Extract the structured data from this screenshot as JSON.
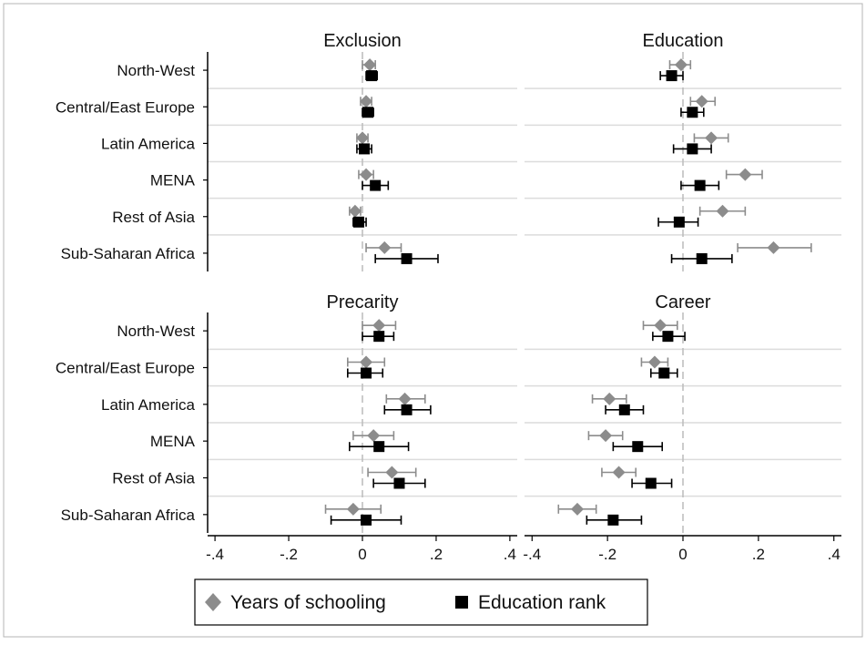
{
  "chart_data": {
    "type": "scatter",
    "subtype": "coefficient-plot-with-confidence-intervals",
    "layout": "2x2 panels",
    "rows": [
      "North-West",
      "Central/East Europe",
      "Latin America",
      "MENA",
      "Rest of Asia",
      "Sub-Saharan Africa"
    ],
    "xticks": [
      -0.4,
      -0.2,
      0,
      0.2,
      0.4
    ],
    "xtick_labels": [
      "-.4",
      "-.2",
      "0",
      ".2",
      ".4"
    ],
    "xlim": [
      -0.42,
      0.42
    ],
    "reference_line": 0,
    "grid": "horizontal row separators",
    "legend": {
      "placement": "bottom",
      "entries": [
        {
          "label": "Years of schooling",
          "marker": "diamond",
          "color": "#8c8c8c"
        },
        {
          "label": "Education rank",
          "marker": "square",
          "color": "#000000"
        }
      ]
    },
    "colors": {
      "years_of_schooling": "#8c8c8c",
      "education_rank": "#000000",
      "reference_line": "#bbbbbb",
      "separator": "#dcdcdc"
    },
    "panels": [
      {
        "title": "Exclusion",
        "series": [
          {
            "name": "Years of schooling",
            "estimates": [
              0.02,
              0.01,
              0.0,
              0.01,
              -0.02,
              0.06
            ],
            "ci_low": [
              0.0,
              -0.005,
              -0.015,
              -0.01,
              -0.035,
              0.01
            ],
            "ci_high": [
              0.035,
              0.025,
              0.015,
              0.03,
              -0.005,
              0.105
            ]
          },
          {
            "name": "Education rank",
            "estimates": [
              0.025,
              0.015,
              0.005,
              0.035,
              -0.01,
              0.12
            ],
            "ci_low": [
              0.01,
              0.0,
              -0.015,
              0.0,
              -0.025,
              0.035
            ],
            "ci_high": [
              0.04,
              0.03,
              0.025,
              0.07,
              0.01,
              0.205
            ]
          }
        ]
      },
      {
        "title": "Education",
        "series": [
          {
            "name": "Years of schooling",
            "estimates": [
              -0.005,
              0.05,
              0.075,
              0.165,
              0.105,
              0.24
            ],
            "ci_low": [
              -0.035,
              0.02,
              0.03,
              0.115,
              0.045,
              0.145
            ],
            "ci_high": [
              0.02,
              0.085,
              0.12,
              0.21,
              0.165,
              0.34
            ]
          },
          {
            "name": "Education rank",
            "estimates": [
              -0.03,
              0.025,
              0.025,
              0.045,
              -0.01,
              0.05
            ],
            "ci_low": [
              -0.06,
              -0.005,
              -0.025,
              -0.005,
              -0.065,
              -0.03
            ],
            "ci_high": [
              0.0,
              0.055,
              0.075,
              0.095,
              0.04,
              0.13
            ]
          }
        ]
      },
      {
        "title": "Precarity",
        "series": [
          {
            "name": "Years of schooling",
            "estimates": [
              0.045,
              0.01,
              0.115,
              0.03,
              0.08,
              -0.025
            ],
            "ci_low": [
              0.0,
              -0.04,
              0.065,
              -0.025,
              0.015,
              -0.1
            ],
            "ci_high": [
              0.09,
              0.06,
              0.17,
              0.085,
              0.145,
              0.05
            ]
          },
          {
            "name": "Education rank",
            "estimates": [
              0.045,
              0.01,
              0.12,
              0.045,
              0.1,
              0.01
            ],
            "ci_low": [
              0.0,
              -0.04,
              0.06,
              -0.035,
              0.03,
              -0.085
            ],
            "ci_high": [
              0.085,
              0.055,
              0.185,
              0.125,
              0.17,
              0.105
            ]
          }
        ]
      },
      {
        "title": "Career",
        "series": [
          {
            "name": "Years of schooling",
            "estimates": [
              -0.06,
              -0.075,
              -0.195,
              -0.205,
              -0.17,
              -0.28
            ],
            "ci_low": [
              -0.105,
              -0.11,
              -0.24,
              -0.25,
              -0.215,
              -0.33
            ],
            "ci_high": [
              -0.015,
              -0.04,
              -0.15,
              -0.16,
              -0.125,
              -0.23
            ]
          },
          {
            "name": "Education rank",
            "estimates": [
              -0.04,
              -0.05,
              -0.155,
              -0.12,
              -0.085,
              -0.185
            ],
            "ci_low": [
              -0.08,
              -0.085,
              -0.205,
              -0.185,
              -0.135,
              -0.255
            ],
            "ci_high": [
              0.005,
              -0.015,
              -0.105,
              -0.055,
              -0.03,
              -0.11
            ]
          }
        ]
      }
    ]
  }
}
